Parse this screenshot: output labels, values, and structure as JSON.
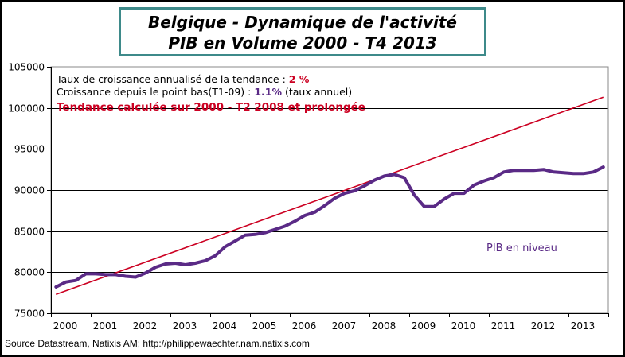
{
  "chart_data": {
    "type": "line",
    "title": "Belgique - Dynamique de l'activité",
    "subtitle": "PIB en Volume 2000 - T4 2013",
    "xlabel": "",
    "ylabel": "",
    "ylim": [
      75000,
      105000
    ],
    "yticks": [
      "75000",
      "80000",
      "85000",
      "90000",
      "95000",
      "100000",
      "105000"
    ],
    "ytick_values": [
      75000,
      80000,
      85000,
      90000,
      95000,
      100000,
      105000
    ],
    "xlim": [
      2000,
      2014
    ],
    "xticks": [
      "2000",
      "2001",
      "2002",
      "2003",
      "2004",
      "2005",
      "2006",
      "2007",
      "2008",
      "2009",
      "2010",
      "2011",
      "2012",
      "2013"
    ],
    "grid": "horizontal",
    "x_frequency": "quarterly",
    "x_start": "2000 T1",
    "series": [
      {
        "name": "PIB en niveau",
        "color": "#5a2a86",
        "values": [
          78200,
          78800,
          79000,
          79800,
          79800,
          79700,
          79700,
          79500,
          79400,
          79900,
          80600,
          81000,
          81100,
          80900,
          81100,
          81400,
          82000,
          83100,
          83800,
          84500,
          84600,
          84800,
          85200,
          85600,
          86200,
          86900,
          87300,
          88100,
          89000,
          89600,
          89900,
          90500,
          91200,
          91700,
          91900,
          91500,
          89400,
          88000,
          88000,
          88900,
          89600,
          89600,
          90600,
          91100,
          91500,
          92200,
          92400,
          92400,
          92400,
          92500,
          92200,
          92100,
          92000,
          92000,
          92200,
          92800
        ]
      },
      {
        "name": "Tendance calculée sur 2000 - T2 2008 et prolongée",
        "color": "#cc0022",
        "start_value": 77300,
        "end_value": 101300,
        "annual_growth_pct": 2
      }
    ],
    "annotations": [
      "Taux de croissance annualisé de la tendance : 2 %",
      "Croissance depuis le point bas(T1-09) : 1.1% (taux annuel)",
      "Tendance calculée sur 2000 - T2 2008 et prolongée",
      "PIB en niveau"
    ]
  },
  "title": {
    "line1": "Belgique - Dynamique de l'activité",
    "line2": "PIB en Volume 2000 - T4 2013"
  },
  "annotations": {
    "trend_rate_label": "Taux de croissance annualisé de la tendance : ",
    "trend_rate_value": "2 %",
    "growth_label": "Croissance depuis le point bas(T1-09) : ",
    "growth_value": "1.1%",
    "growth_suffix": " (taux annuel)",
    "trend_note": "Tendance calculée sur 2000 - T2 2008 et prolongée"
  },
  "series_label": "PIB en niveau",
  "source": "Source Datastream, Natixis AM;  http://philippewaechter.nam.natixis.com"
}
